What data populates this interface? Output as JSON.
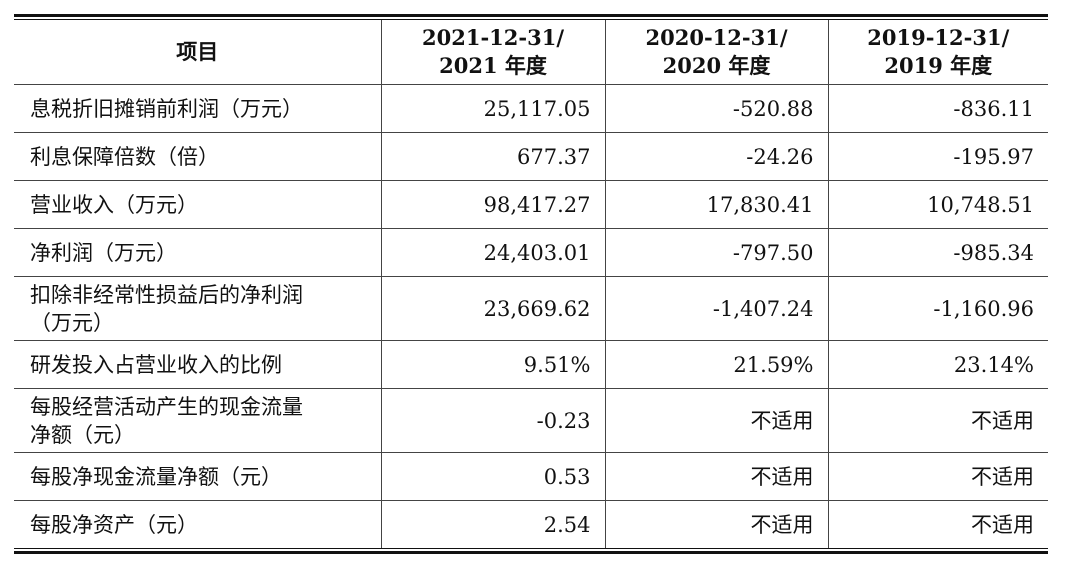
{
  "header": {
    "item": "项目",
    "col1": [
      "2021-12-31/",
      "2021 年度"
    ],
    "col2": [
      "2020-12-31/",
      "2020 年度"
    ],
    "col3": [
      "2019-12-31/",
      "2019 年度"
    ]
  },
  "rows": [
    {
      "label": [
        "息税折旧摊销前利润（万元）"
      ],
      "v2021": "25,117.05",
      "v2020": "-520.88",
      "v2019": "-836.11"
    },
    {
      "label": [
        "利息保障倍数（倍）"
      ],
      "v2021": "677.37",
      "v2020": "-24.26",
      "v2019": "-195.97"
    },
    {
      "label": [
        "营业收入（万元）"
      ],
      "v2021": "98,417.27",
      "v2020": "17,830.41",
      "v2019": "10,748.51"
    },
    {
      "label": [
        "净利润（万元）"
      ],
      "v2021": "24,403.01",
      "v2020": "-797.50",
      "v2019": "-985.34"
    },
    {
      "label": [
        "扣除非经常性损益后的净利润",
        "（万元）"
      ],
      "v2021": "23,669.62",
      "v2020": "-1,407.24",
      "v2019": "-1,160.96"
    },
    {
      "label": [
        "研发投入占营业收入的比例"
      ],
      "v2021": "9.51%",
      "v2020": "21.59%",
      "v2019": "23.14%"
    },
    {
      "label": [
        "每股经营活动产生的现金流量",
        "净额（元）"
      ],
      "v2021": "-0.23",
      "v2020": "不适用",
      "v2019": "不适用"
    },
    {
      "label": [
        "每股净现金流量净额（元）"
      ],
      "v2021": "0.53",
      "v2020": "不适用",
      "v2019": "不适用"
    },
    {
      "label": [
        "每股净资产（元）"
      ],
      "v2021": "2.54",
      "v2020": "不适用",
      "v2019": "不适用"
    }
  ]
}
